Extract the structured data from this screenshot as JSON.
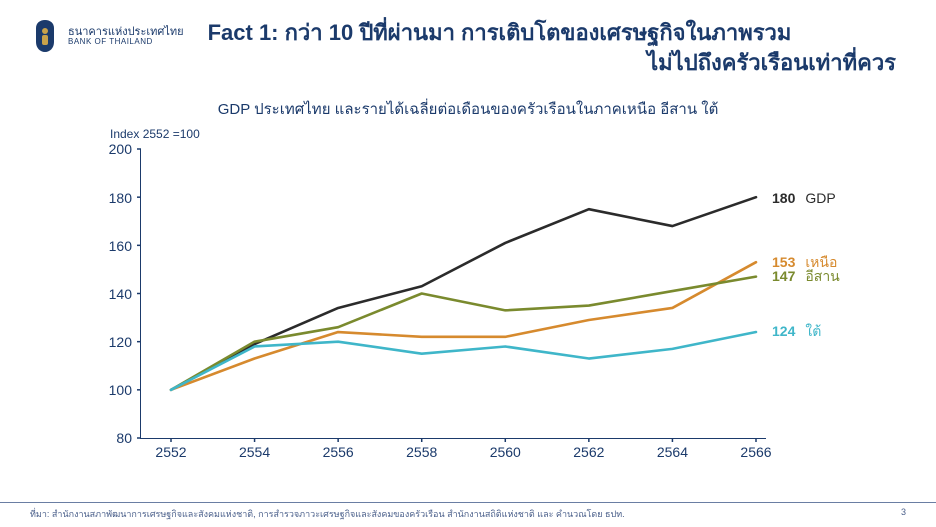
{
  "logo": {
    "thai": "ธนาคารแห่งประเทศไทย",
    "english": "BANK OF THAILAND"
  },
  "title": {
    "line1": "Fact 1: กว่า 10 ปีที่ผ่านมา การเติบโตของเศรษฐกิจในภาพรวม",
    "line2": "ไม่ไปถึงครัวเรือนเท่าที่ควร"
  },
  "subtitle": "GDP ประเทศไทย และรายได้เฉลี่ยต่อเดือนของครัวเรือนในภาคเหนือ อีสาน ใต้",
  "index_label": "Index 2552 =100",
  "chart": {
    "type": "line",
    "background_color": "#ffffff",
    "axis_color": "#1b3a6b",
    "ylim": [
      80,
      200
    ],
    "ytick_step": 20,
    "yticks": [
      80,
      100,
      120,
      140,
      160,
      180,
      200
    ],
    "xlabels": [
      "2552",
      "2554",
      "2556",
      "2558",
      "2560",
      "2562",
      "2564",
      "2566"
    ],
    "x_count": 8,
    "line_width": 2.6,
    "series": [
      {
        "key": "gdp",
        "name": "GDP",
        "color": "#2b2b2b",
        "values": [
          100,
          119,
          134,
          143,
          161,
          175,
          168,
          180
        ],
        "end_value": 180
      },
      {
        "key": "north",
        "name": "เหนือ",
        "color": "#d68a2e",
        "values": [
          100,
          113,
          124,
          122,
          122,
          129,
          134,
          153
        ],
        "end_value": 153
      },
      {
        "key": "isan",
        "name": "อีสาน",
        "color": "#7a8a2e",
        "values": [
          100,
          120,
          126,
          140,
          133,
          135,
          141,
          147
        ],
        "end_value": 147
      },
      {
        "key": "south",
        "name": "ใต้",
        "color": "#3fb6c9",
        "values": [
          100,
          118,
          120,
          115,
          118,
          113,
          117,
          124
        ],
        "end_value": 124
      }
    ],
    "label_fontsize": 14
  },
  "footer": {
    "source": "ที่มา: สำนักงานสภาพัฒนาการเศรษฐกิจและสังคมแห่งชาติ, การสำรวจภาวะเศรษฐกิจและสังคมของครัวเรือน สำนักงานสถิติแห่งชาติ และ คำนวณโดย ธปท.",
    "page": "3"
  }
}
